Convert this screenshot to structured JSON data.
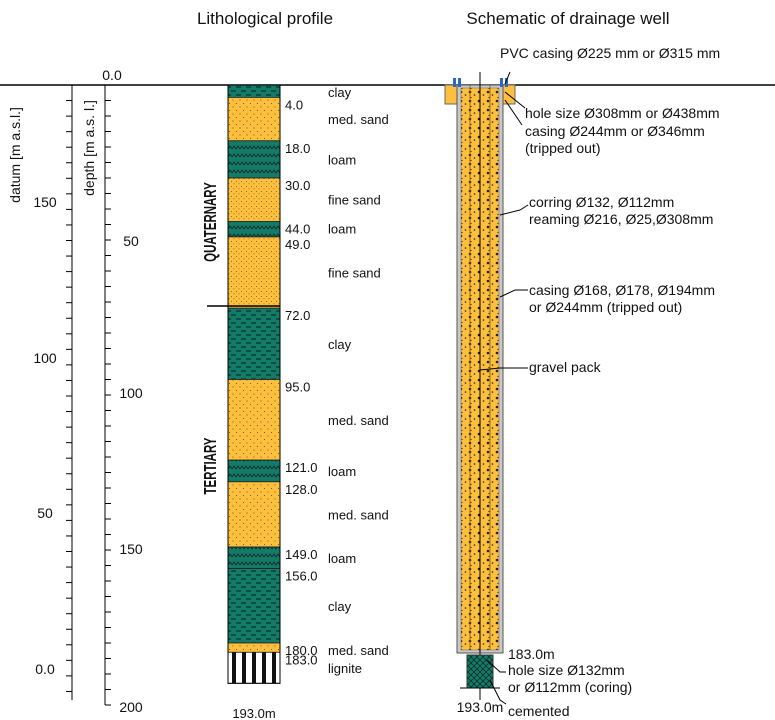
{
  "titles": {
    "left": "Lithological profile",
    "right": "Schematic of drainage well"
  },
  "axes": {
    "datum_label": "datum [m a.s.l.]",
    "depth_label": "depth [m a.s. l.]",
    "datum_ticks": [
      "0.0",
      "150",
      "100",
      "50",
      "0.0"
    ],
    "depth_ticks": [
      "50",
      "100",
      "150",
      "200"
    ]
  },
  "eras": {
    "quaternary": "QUATERNARY",
    "tertiary": "TERTIARY"
  },
  "layers": [
    {
      "top": "0.0",
      "label": "clay",
      "pattern": "clay"
    },
    {
      "top": "4.0",
      "label": "med. sand",
      "pattern": "sand"
    },
    {
      "top": "18.0",
      "label": "loam",
      "pattern": "loam"
    },
    {
      "top": "30.0",
      "label": "fine sand",
      "pattern": "fine"
    },
    {
      "top": "44.0",
      "label": "loam",
      "pattern": "loam"
    },
    {
      "top": "49.0",
      "label": "fine sand",
      "pattern": "fine"
    },
    {
      "top": "72.0",
      "label": "clay",
      "pattern": "clay"
    },
    {
      "top": "95.0",
      "label": "med. sand",
      "pattern": "sand"
    },
    {
      "top": "121.0",
      "label": "loam",
      "pattern": "loam"
    },
    {
      "top": "128.0",
      "label": "med. sand",
      "pattern": "sand"
    },
    {
      "top": "149.0",
      "label": "loam",
      "pattern": "loam"
    },
    {
      "top": "156.0",
      "label": "clay",
      "pattern": "clay"
    },
    {
      "top": "180.0",
      "label": "med. sand",
      "pattern": "sand"
    },
    {
      "top": "183.0",
      "label": "lignite",
      "pattern": "lignite"
    }
  ],
  "profile_bottom": "193.0m",
  "well": {
    "annotations": [
      "PVC casing Ø225 mm or Ø315 mm",
      "hole size Ø308mm or Ø438mm",
      "casing Ø244mm or Ø346mm",
      "(tripped out)",
      "corring Ø132, Ø112mm",
      "reaming Ø216, Ø25,Ø308mm",
      "casing Ø168, Ø178, Ø194mm",
      "or Ø244mm (tripped out)",
      "gravel pack",
      "183.0m",
      "hole size Ø132mm",
      "or Ø112mm (coring)",
      "cemented"
    ],
    "bottom": "193.0m"
  },
  "colors": {
    "sand": "#FDBF3D",
    "clay": "#137C68",
    "casing": "#bfbfbf",
    "pipe_mark": "#2d68c4"
  }
}
